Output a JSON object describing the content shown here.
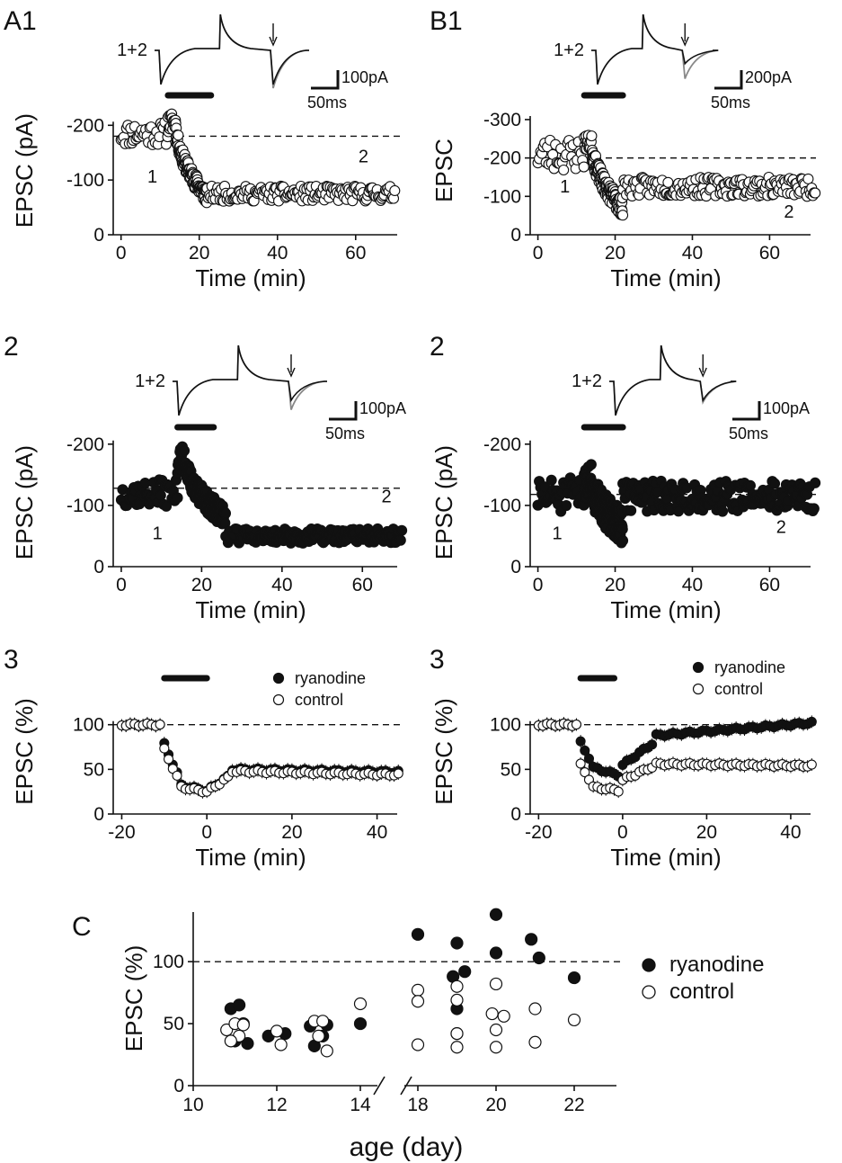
{
  "colors": {
    "black": "#111111",
    "grey": "#888888",
    "white": "#ffffff"
  },
  "panels": [
    {
      "id": "A1",
      "label": "A1",
      "col": 0,
      "row": 0,
      "kind": "raw",
      "marker": "open",
      "xlabel": "Time (min)",
      "ylabel": "EPSC (pA)",
      "xlim": [
        -2,
        72
      ],
      "ylim": [
        0,
        235
      ],
      "xticks": [
        0,
        20,
        40,
        60
      ],
      "xtick_labels": [
        "0",
        "20",
        "40",
        "60"
      ],
      "yticks": [
        0,
        100,
        200
      ],
      "ytick_labels": [
        "0",
        "-100",
        "-200"
      ],
      "baseline": 180,
      "bar": [
        12,
        23
      ],
      "phases": {
        "pre": [
          0,
          12,
          185,
          22
        ],
        "peak": [
          12,
          14,
          205,
          18
        ],
        "drop": [
          14,
          22,
          70,
          15
        ],
        "post": [
          22,
          70,
          75,
          14
        ]
      },
      "seed": 11,
      "annotations": [
        {
          "text": "1",
          "x": 8,
          "y": 95
        },
        {
          "text": "2",
          "x": 62,
          "y": 132
        }
      ],
      "trace": {
        "label": "1+2",
        "scale_y": "100pA",
        "scale_x": "50ms",
        "depth1": 0.9,
        "depth2": 0.9,
        "grey_depth": 1.0
      }
    },
    {
      "id": "B1",
      "label": "B1",
      "col": 1,
      "row": 0,
      "kind": "raw",
      "marker": "open",
      "xlabel": "Time (min)",
      "ylabel": "EPSC",
      "xlim": [
        -2,
        72
      ],
      "ylim": [
        0,
        335
      ],
      "xticks": [
        0,
        20,
        40,
        60
      ],
      "xtick_labels": [
        "0",
        "20",
        "40",
        "60"
      ],
      "yticks": [
        0,
        100,
        200,
        300
      ],
      "ytick_labels": [
        "0",
        "-100",
        "-200",
        "-300"
      ],
      "baseline": 200,
      "bar": [
        12,
        22
      ],
      "phases": {
        "pre": [
          0,
          12,
          210,
          45
        ],
        "peak": [
          12,
          14,
          240,
          20
        ],
        "drop": [
          14,
          22,
          70,
          25
        ],
        "post": [
          22,
          72,
          125,
          25
        ]
      },
      "seed": 23,
      "annotations": [
        {
          "text": "1",
          "x": 7,
          "y": 110
        },
        {
          "text": "2",
          "x": 65,
          "y": 45
        }
      ],
      "trace": {
        "label": "1+2",
        "scale_y": "200pA",
        "scale_x": "50ms",
        "depth1": 0.9,
        "depth2": 0.35,
        "grey_depth": 0.75
      }
    },
    {
      "id": "A2",
      "label": "2",
      "col": 0,
      "row": 1,
      "kind": "raw",
      "marker": "filled",
      "xlabel": "Time (min)",
      "ylabel": "EPSC (pA)",
      "xlim": [
        -2,
        70
      ],
      "ylim": [
        0,
        210
      ],
      "xticks": [
        0,
        20,
        40,
        60
      ],
      "xtick_labels": [
        "0",
        "20",
        "40",
        "60"
      ],
      "yticks": [
        0,
        100,
        200
      ],
      "ytick_labels": [
        "0",
        "-100",
        "-200"
      ],
      "baseline": 128,
      "bar": [
        14,
        23
      ],
      "phases": {
        "pre": [
          0,
          14,
          120,
          22
        ],
        "peak": [
          14,
          16,
          175,
          22
        ],
        "drop": [
          16,
          26,
          80,
          18
        ],
        "post": [
          26,
          70,
          50,
          12
        ]
      },
      "seed": 37,
      "annotations": [
        {
          "text": "1",
          "x": 9,
          "y": 45
        },
        {
          "text": "2",
          "x": 66,
          "y": 105
        }
      ],
      "trace": {
        "label": "1+2",
        "scale_y": "100pA",
        "scale_x": "50ms",
        "depth1": 0.9,
        "depth2": 0.5,
        "grey_depth": 0.75
      }
    },
    {
      "id": "B2",
      "label": "2",
      "col": 1,
      "row": 1,
      "kind": "raw",
      "marker": "filled",
      "xlabel": "Time (min)",
      "ylabel": "EPSC (pA)",
      "xlim": [
        -2,
        72
      ],
      "ylim": [
        0,
        210
      ],
      "xticks": [
        0,
        20,
        40,
        60
      ],
      "xtick_labels": [
        "0",
        "20",
        "40",
        "60"
      ],
      "yticks": [
        0,
        100,
        200
      ],
      "ytick_labels": [
        "0",
        "-100",
        "-200"
      ],
      "baseline": 118,
      "bar": [
        12,
        22
      ],
      "phases": {
        "pre": [
          0,
          12,
          115,
          30
        ],
        "peak": [
          12,
          14,
          140,
          30
        ],
        "drop": [
          14,
          22,
          65,
          28
        ],
        "post": [
          22,
          72,
          115,
          25
        ]
      },
      "seed": 51,
      "annotations": [
        {
          "text": "1",
          "x": 5,
          "y": 45
        },
        {
          "text": "2",
          "x": 63,
          "y": 55
        }
      ],
      "trace": {
        "label": "1+2",
        "scale_y": "100pA",
        "scale_x": "50ms",
        "depth1": 0.9,
        "depth2": 0.5,
        "grey_depth": 0.55
      }
    },
    {
      "id": "A3",
      "label": "3",
      "col": 0,
      "row": 2,
      "kind": "avg",
      "xlabel": "Time (min)",
      "ylabel": "EPSC (%)",
      "xlim": [
        -22,
        46
      ],
      "ylim": [
        0,
        140
      ],
      "xticks": [
        -20,
        0,
        20,
        40
      ],
      "xtick_labels": [
        "-20",
        "0",
        "20",
        "40"
      ],
      "yticks": [
        0,
        50,
        100
      ],
      "ytick_labels": [
        "0",
        "50",
        "100"
      ],
      "baseline": 100,
      "bar": [
        -10,
        0
      ],
      "legend": [
        {
          "text": "ryanodine",
          "marker": "filled"
        },
        {
          "text": "control",
          "marker": "open"
        }
      ],
      "series": [
        {
          "name": "ryanodine",
          "marker": "filled",
          "segments": [
            [
              -20,
              -10,
              100,
              100
            ],
            [
              -10,
              -6,
              78,
              35
            ],
            [
              -6,
              0,
              32,
              26
            ],
            [
              0,
              6,
              26,
              45
            ],
            [
              6,
              45,
              50,
              47
            ]
          ]
        },
        {
          "name": "control",
          "marker": "open",
          "segments": [
            [
              -20,
              -10,
              100,
              100
            ],
            [
              -10,
              -6,
              72,
              32
            ],
            [
              -6,
              0,
              30,
              25
            ],
            [
              0,
              6,
              25,
              44
            ],
            [
              6,
              45,
              48,
              44
            ]
          ]
        }
      ]
    },
    {
      "id": "B3",
      "label": "3",
      "col": 1,
      "row": 2,
      "kind": "avg",
      "xlabel": "Time (min)",
      "ylabel": "EPSC (%)",
      "xlim": [
        -22,
        46
      ],
      "ylim": [
        0,
        140
      ],
      "xticks": [
        -20,
        0,
        20,
        40
      ],
      "xtick_labels": [
        "-20",
        "0",
        "20",
        "40"
      ],
      "yticks": [
        0,
        50,
        100
      ],
      "ytick_labels": [
        "0",
        "50",
        "100"
      ],
      "baseline": 100,
      "bar": [
        -10,
        -2
      ],
      "legend": [
        {
          "text": "ryanodine",
          "marker": "filled"
        },
        {
          "text": "control",
          "marker": "open"
        }
      ],
      "series": [
        {
          "name": "ryanodine",
          "marker": "filled",
          "segments": [
            [
              -20,
              -10,
              100,
              100
            ],
            [
              -10,
              -7,
              80,
              55
            ],
            [
              -7,
              0,
              52,
              42
            ],
            [
              0,
              8,
              55,
              82
            ],
            [
              8,
              45,
              88,
              102
            ]
          ]
        },
        {
          "name": "control",
          "marker": "open",
          "segments": [
            [
              -20,
              -10,
              100,
              100
            ],
            [
              -10,
              -7,
              55,
              32
            ],
            [
              -7,
              0,
              30,
              26
            ],
            [
              0,
              8,
              38,
              55
            ],
            [
              8,
              45,
              56,
              54
            ]
          ]
        }
      ]
    }
  ],
  "chart_data": [
    {
      "type": "scatter",
      "panel": "C",
      "label": "C",
      "xlabel": "age (day)",
      "ylabel": "EPSC (%)",
      "ylim": [
        0,
        140
      ],
      "xticks": [
        10,
        12,
        14,
        18,
        20,
        22
      ],
      "yticks": [
        0,
        50,
        100
      ],
      "axis_break": [
        14.5,
        17.5
      ],
      "baseline": 100,
      "legend": [
        {
          "text": "ryanodine",
          "marker": "filled"
        },
        {
          "text": "control",
          "marker": "open"
        }
      ],
      "series": [
        {
          "name": "ryanodine",
          "marker": "filled",
          "points": [
            [
              10.9,
              62
            ],
            [
              11.1,
              65
            ],
            [
              11.2,
              50
            ],
            [
              11.0,
              36
            ],
            [
              11.3,
              34
            ],
            [
              11.8,
              40
            ],
            [
              12.2,
              42
            ],
            [
              12.8,
              48
            ],
            [
              13.2,
              49
            ],
            [
              12.9,
              32
            ],
            [
              13.1,
              40
            ],
            [
              14.0,
              50
            ],
            [
              18.0,
              122
            ],
            [
              18.9,
              88
            ],
            [
              19.2,
              92
            ],
            [
              19.0,
              115
            ],
            [
              19.0,
              62
            ],
            [
              19.0,
              42
            ],
            [
              20.0,
              138
            ],
            [
              20.0,
              107
            ],
            [
              20.9,
              118
            ],
            [
              21.1,
              103
            ],
            [
              22.0,
              87
            ]
          ]
        },
        {
          "name": "control",
          "marker": "open",
          "points": [
            [
              10.8,
              45
            ],
            [
              11.0,
              50
            ],
            [
              11.2,
              49
            ],
            [
              11.1,
              40
            ],
            [
              10.9,
              36
            ],
            [
              12.0,
              44
            ],
            [
              12.1,
              33
            ],
            [
              12.9,
              52
            ],
            [
              13.1,
              52
            ],
            [
              13.0,
              40
            ],
            [
              13.2,
              28
            ],
            [
              14.0,
              66
            ],
            [
              18.0,
              77
            ],
            [
              18.0,
              68
            ],
            [
              18.0,
              33
            ],
            [
              19.0,
              80
            ],
            [
              19.0,
              69
            ],
            [
              19.0,
              42
            ],
            [
              19.0,
              31
            ],
            [
              20.0,
              82
            ],
            [
              19.9,
              58
            ],
            [
              20.2,
              56
            ],
            [
              20.0,
              45
            ],
            [
              20.0,
              31
            ],
            [
              21.0,
              62
            ],
            [
              21.0,
              35
            ],
            [
              22.0,
              53
            ]
          ]
        }
      ]
    }
  ]
}
